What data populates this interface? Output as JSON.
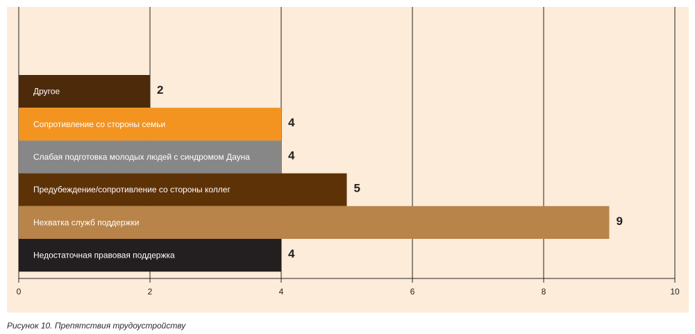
{
  "caption": "Рисунок 10. Препятствия трудоустройству",
  "chart_data": {
    "type": "bar",
    "orientation": "horizontal",
    "categories": [
      "Другое",
      "Сопротивление со стороны семьи",
      "Слабая подготовка молодых людей с синдромом Дауна",
      "Предубеждение/сопротивление со стороны коллег",
      "Нехватка служб поддержки",
      "Недостаточная правовая поддержка"
    ],
    "values": [
      2,
      4,
      4,
      5,
      9,
      4
    ],
    "colors": [
      "#4d2a0a",
      "#f39420",
      "#878787",
      "#5e3207",
      "#b8844a",
      "#231f20"
    ],
    "xlim": [
      0,
      10
    ],
    "xticks": [
      0,
      2,
      4,
      6,
      8,
      10
    ],
    "grid": true,
    "background": "#fcecd9"
  }
}
